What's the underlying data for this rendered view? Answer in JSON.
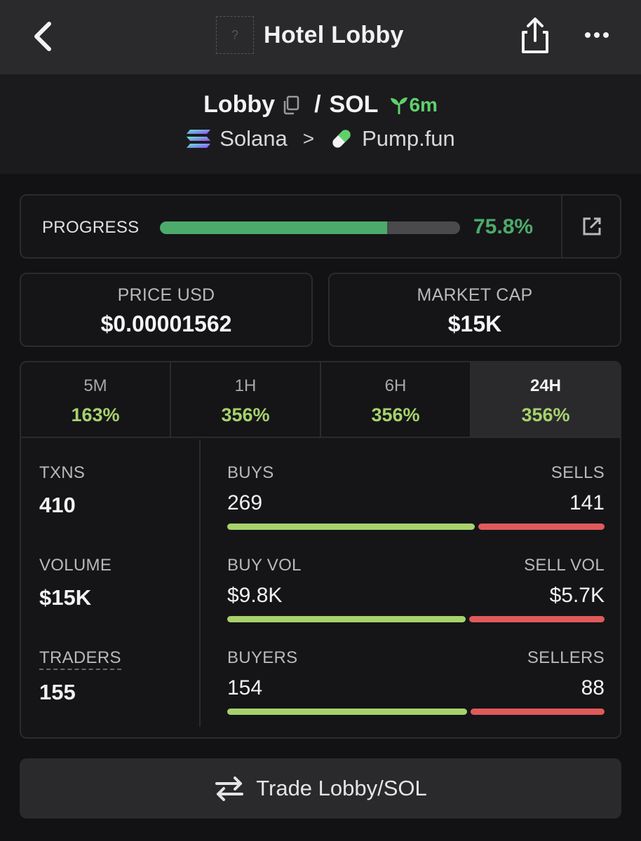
{
  "header": {
    "title": "Hotel Lobby",
    "app_icon_glyph": "?"
  },
  "pair": {
    "token": "Lobby",
    "separator": "/",
    "quote": "SOL",
    "age": "6m",
    "chain": "Solana",
    "dex": "Pump.fun"
  },
  "progress": {
    "label": "PROGRESS",
    "value_text": "75.8%",
    "fraction": 0.758
  },
  "price": {
    "label": "PRICE USD",
    "value": "$0.00001562"
  },
  "market_cap": {
    "label": "MARKET CAP",
    "value": "$15K"
  },
  "timeframes": [
    {
      "label": "5M",
      "value": "163%",
      "active": false
    },
    {
      "label": "1H",
      "value": "356%",
      "active": false
    },
    {
      "label": "6H",
      "value": "356%",
      "active": false
    },
    {
      "label": "24H",
      "value": "356%",
      "active": true
    }
  ],
  "metrics": {
    "txns": {
      "label": "TXNS",
      "value": "410"
    },
    "volume": {
      "label": "VOLUME",
      "value": "$15K"
    },
    "traders": {
      "label": "TRADERS",
      "value": "155"
    }
  },
  "splits": {
    "txns": {
      "left_label": "BUYS",
      "right_label": "SELLS",
      "left_value": "269",
      "right_value": "141",
      "buy_fraction": 0.656
    },
    "volume": {
      "left_label": "BUY VOL",
      "right_label": "SELL VOL",
      "left_value": "$9.8K",
      "right_value": "$5.7K",
      "buy_fraction": 0.632
    },
    "traders": {
      "left_label": "BUYERS",
      "right_label": "SELLERS",
      "left_value": "154",
      "right_value": "88",
      "buy_fraction": 0.636
    }
  },
  "trade_button": {
    "label": "Trade Lobby/SOL"
  },
  "colors": {
    "green": "#4cab6a",
    "buy": "#a7d26b",
    "sell": "#e05a5a"
  }
}
